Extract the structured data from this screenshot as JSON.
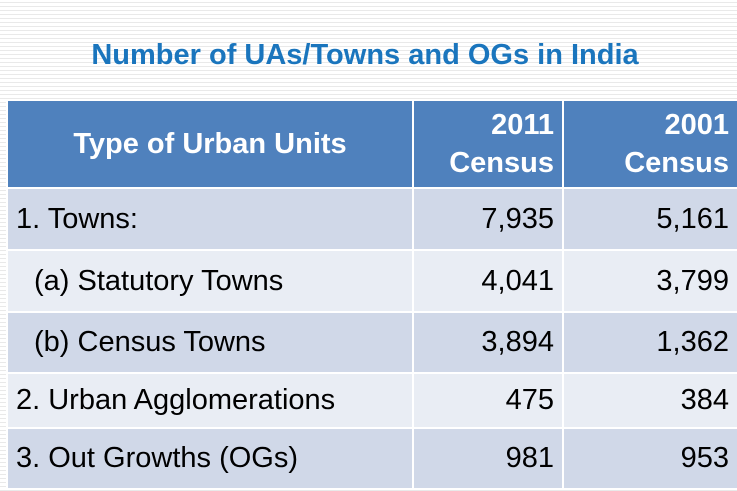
{
  "title": "Number of UAs/Towns and OGs in India",
  "table": {
    "headers": [
      "Type of Urban Units",
      "2011 Census",
      "2001 Census"
    ],
    "rows": [
      {
        "label": "1. Towns:",
        "v2011": "7,935",
        "v2001": "5,161"
      },
      {
        "label": "(a) Statutory Towns",
        "v2011": "4,041",
        "v2001": "3,799"
      },
      {
        "label": "(b) Census Towns",
        "v2011": "3,894",
        "v2001": "1,362"
      },
      {
        "label": "2. Urban Agglomerations",
        "v2011": "475",
        "v2001": "384"
      },
      {
        "label": "3. Out Growths (OGs)",
        "v2011": "981",
        "v2001": "953"
      }
    ]
  },
  "colors": {
    "title": "#1a75bd",
    "header_bg": "#4f81bd",
    "row_dark": "#d0d8e8",
    "row_light": "#e9edf4"
  }
}
